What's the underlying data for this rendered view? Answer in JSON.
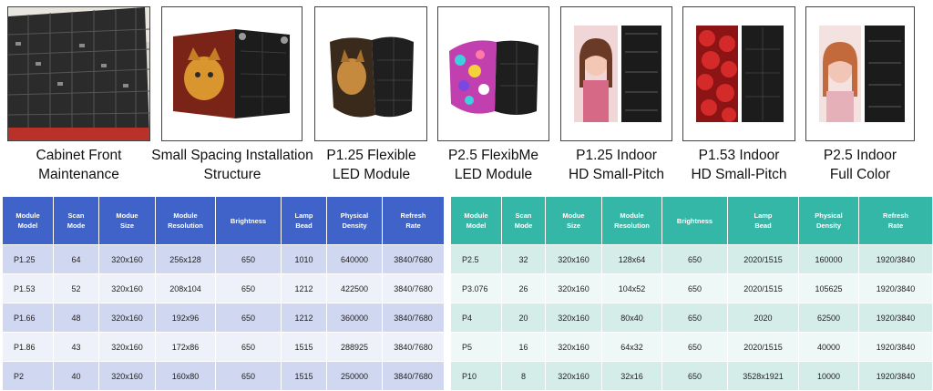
{
  "products": [
    {
      "caption_lines": [
        "Cabinet Front",
        "Maintenance"
      ],
      "icon": "cabinet-wall-photo"
    },
    {
      "caption_lines": [
        "Small Spacing Installation",
        "Structure"
      ],
      "icon": "cat-screen-module-photo"
    },
    {
      "caption_lines": [
        "P1.25 Flexible",
        "LED Module"
      ],
      "icon": "cat-flexible-module-photo"
    },
    {
      "caption_lines": [
        "P2.5 FlexibMe",
        "LED Module"
      ],
      "icon": "colorful-flexible-module-photo"
    },
    {
      "caption_lines": [
        "P1.25 Indoor",
        "HD Small-Pitch"
      ],
      "icon": "woman-portrait-module-photo"
    },
    {
      "caption_lines": [
        "P1.53 Indoor",
        "HD Small-Pitch"
      ],
      "icon": "strawberries-module-photo"
    },
    {
      "caption_lines": [
        "P2.5 Indoor",
        "Full Color"
      ],
      "icon": "woman-portrait-module-photo"
    }
  ],
  "left_table": {
    "header_color": "#3f63c8",
    "headers": [
      [
        "Module",
        "Model"
      ],
      [
        "Scan",
        "Mode"
      ],
      [
        "Modue",
        "Size"
      ],
      [
        "Module",
        "Resolution"
      ],
      [
        "Brightness"
      ],
      [
        "Lamp",
        "Bead"
      ],
      [
        "Physical",
        "Density"
      ],
      [
        "Refresh",
        "Rate"
      ]
    ],
    "rows": [
      [
        "P1.25",
        "64",
        "320x160",
        "256x128",
        "650",
        "1010",
        "640000",
        "3840/7680"
      ],
      [
        "P1.53",
        "52",
        "320x160",
        "208x104",
        "650",
        "1212",
        "422500",
        "3840/7680"
      ],
      [
        "P1.66",
        "48",
        "320x160",
        "192x96",
        "650",
        "1212",
        "360000",
        "3840/7680"
      ],
      [
        "P1.86",
        "43",
        "320x160",
        "172x86",
        "650",
        "1515",
        "288925",
        "3840/7680"
      ],
      [
        "P2",
        "40",
        "320x160",
        "160x80",
        "650",
        "1515",
        "250000",
        "3840/7680"
      ]
    ]
  },
  "right_table": {
    "header_color": "#34b7a6",
    "headers": [
      [
        "Module",
        "Model"
      ],
      [
        "Scan",
        "Mode"
      ],
      [
        "Modue",
        "Size"
      ],
      [
        "Module",
        "Resolution"
      ],
      [
        "Brightness"
      ],
      [
        "Lamp",
        "Bead"
      ],
      [
        "Physical",
        "Density"
      ],
      [
        "Refresh",
        "Rate"
      ]
    ],
    "rows": [
      [
        "P2.5",
        "32",
        "320x160",
        "128x64",
        "650",
        "2020/1515",
        "160000",
        "1920/3840"
      ],
      [
        "P3.076",
        "26",
        "320x160",
        "104x52",
        "650",
        "2020/1515",
        "105625",
        "1920/3840"
      ],
      [
        "P4",
        "20",
        "320x160",
        "80x40",
        "650",
        "2020",
        "62500",
        "1920/3840"
      ],
      [
        "P5",
        "16",
        "320x160",
        "64x32",
        "650",
        "2020/1515",
        "40000",
        "1920/3840"
      ],
      [
        "P10",
        "8",
        "320x160",
        "32x16",
        "650",
        "3528x1921",
        "10000",
        "1920/3840"
      ]
    ]
  }
}
